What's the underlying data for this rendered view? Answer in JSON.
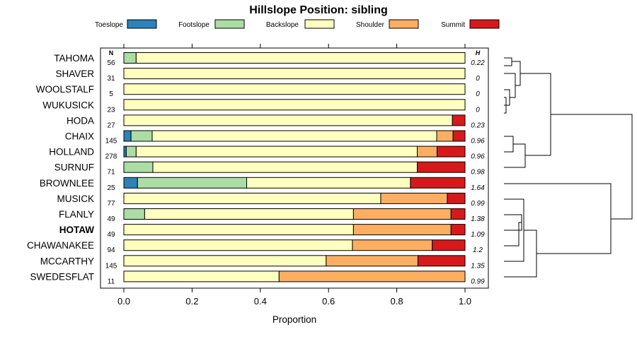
{
  "chart_data": {
    "type": "bar",
    "orientation": "horizontal-stacked",
    "title": "Hillslope Position: sibling",
    "xlabel": "Proportion",
    "xlim": [
      0,
      1
    ],
    "xticks": [
      "0.0",
      "0.2",
      "0.4",
      "0.6",
      "0.8",
      "1.0"
    ],
    "xtick_values": [
      0,
      0.2,
      0.4,
      0.6,
      0.8,
      1.0
    ],
    "n_header": "N",
    "h_header": "H",
    "legend": [
      {
        "name": "Toeslope",
        "color": "#2b83ba"
      },
      {
        "name": "Footslope",
        "color": "#abdda4"
      },
      {
        "name": "Backslope",
        "color": "#ffffbf"
      },
      {
        "name": "Shoulder",
        "color": "#fdae61"
      },
      {
        "name": "Summit",
        "color": "#d7191c"
      }
    ],
    "rows": [
      {
        "name": "TAHOMA",
        "n": "56",
        "h": "0.22",
        "bold": false,
        "values": [
          0,
          0.036,
          0.964,
          0,
          0
        ]
      },
      {
        "name": "SHAVER",
        "n": "31",
        "h": "0",
        "bold": false,
        "values": [
          0,
          0,
          1.0,
          0,
          0
        ]
      },
      {
        "name": "WOOLSTALF",
        "n": "5",
        "h": "0",
        "bold": false,
        "values": [
          0,
          0,
          1.0,
          0,
          0
        ]
      },
      {
        "name": "WUKUSICK",
        "n": "23",
        "h": "0",
        "bold": false,
        "values": [
          0,
          0,
          1.0,
          0,
          0
        ]
      },
      {
        "name": "HODA",
        "n": "27",
        "h": "0.23",
        "bold": false,
        "values": [
          0,
          0,
          0.963,
          0,
          0.037
        ]
      },
      {
        "name": "CHAIX",
        "n": "145",
        "h": "0.96",
        "bold": false,
        "values": [
          0.021,
          0.062,
          0.834,
          0.048,
          0.035
        ]
      },
      {
        "name": "HOLLAND",
        "n": "278",
        "h": "0.96",
        "bold": false,
        "values": [
          0.007,
          0.029,
          0.824,
          0.058,
          0.082
        ]
      },
      {
        "name": "SURNUF",
        "n": "71",
        "h": "0.98",
        "bold": false,
        "values": [
          0,
          0.085,
          0.775,
          0,
          0.14
        ]
      },
      {
        "name": "BROWNLEE",
        "n": "25",
        "h": "1.64",
        "bold": false,
        "values": [
          0.04,
          0.32,
          0.48,
          0,
          0.16
        ]
      },
      {
        "name": "MUSICK",
        "n": "77",
        "h": "0.99",
        "bold": false,
        "values": [
          0,
          0,
          0.753,
          0.195,
          0.052
        ]
      },
      {
        "name": "FLANLY",
        "n": "49",
        "h": "1.38",
        "bold": false,
        "values": [
          0,
          0.061,
          0.612,
          0.286,
          0.041
        ]
      },
      {
        "name": "HOTAW",
        "n": "49",
        "h": "1.09",
        "bold": true,
        "values": [
          0,
          0,
          0.673,
          0.286,
          0.041
        ]
      },
      {
        "name": "CHAWANAKEE",
        "n": "94",
        "h": "1.2",
        "bold": false,
        "values": [
          0,
          0,
          0.67,
          0.234,
          0.096
        ]
      },
      {
        "name": "MCCARTHY",
        "n": "145",
        "h": "1.35",
        "bold": false,
        "values": [
          0,
          0,
          0.593,
          0.269,
          0.138
        ]
      },
      {
        "name": "SWEDESFLAT",
        "n": "11",
        "h": "0.99",
        "bold": false,
        "values": [
          0,
          0,
          0.455,
          0.545,
          0
        ]
      }
    ]
  }
}
